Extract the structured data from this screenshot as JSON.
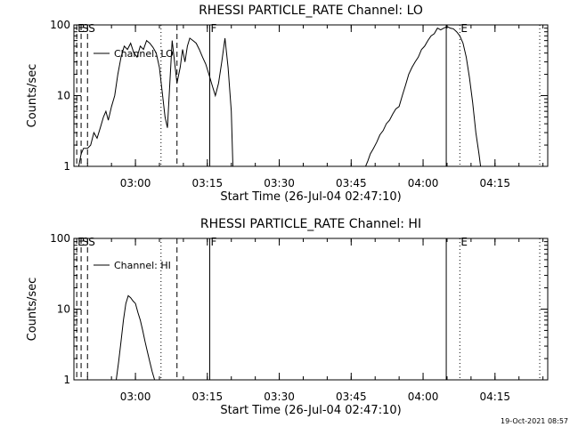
{
  "chart_data": [
    {
      "type": "line",
      "title": "RHESSI PARTICLE_RATE Channel: LO",
      "xlabel": "Start Time (26-Jul-04 02:47:10)",
      "ylabel": "Counts/sec",
      "y_scale": "log",
      "ylim": [
        1,
        100
      ],
      "y_ticks": [
        1,
        10,
        100
      ],
      "y_tick_labels": [
        "1",
        "10",
        "100"
      ],
      "xlim": [
        "02:47:10",
        "04:26:00"
      ],
      "x_ticks": [
        "03:00",
        "03:15",
        "03:30",
        "03:45",
        "04:00",
        "04:15"
      ],
      "x_tick_labels": [
        "03:00",
        "03:15",
        "03:30",
        "03:45",
        "04:00",
        "04:15"
      ],
      "legend": [
        "Channel: LO"
      ],
      "legend_position": "top-left",
      "grid": false,
      "event_markers": [
        {
          "label": "E",
          "time": "02:47:45",
          "style": "dashed"
        },
        {
          "label": "S",
          "time": "02:48:40",
          "style": "dashed"
        },
        {
          "label": "S",
          "time": "02:50:00",
          "style": "dashed"
        },
        {
          "label": "",
          "time": "03:05:20",
          "style": "dotted"
        },
        {
          "label": "",
          "time": "03:08:40",
          "style": "dashed"
        },
        {
          "label": "F",
          "time": "03:15:30",
          "style": "solid"
        },
        {
          "label": "",
          "time": "04:04:50",
          "style": "solid"
        },
        {
          "label": "E",
          "time": "04:07:40",
          "style": "dotted"
        },
        {
          "label": "",
          "time": "04:24:20",
          "style": "dotted"
        }
      ],
      "series": [
        {
          "x": [
            "02:48:10",
            "02:48:40",
            "02:49:10",
            "02:50:00",
            "02:50:40",
            "02:51:20",
            "02:52:00",
            "02:52:40",
            "02:53:20",
            "02:53:50",
            "02:54:20",
            "02:55:00",
            "02:55:40",
            "02:56:20",
            "02:57:00",
            "02:57:40",
            "02:58:20",
            "02:59:00",
            "02:59:40",
            "03:00:20",
            "03:01:00",
            "03:01:40",
            "03:02:20",
            "03:03:00",
            "03:03:40",
            "03:04:20",
            "03:05:00",
            "03:05:40",
            "03:06:10",
            "03:06:40",
            "03:07:10",
            "03:07:40",
            "03:08:10",
            "03:08:40",
            "03:09:20",
            "03:09:50",
            "03:10:20",
            "03:10:50",
            "03:11:20",
            "03:12:00",
            "03:12:40",
            "03:13:20",
            "03:14:00",
            "03:14:40",
            "03:15:20",
            "03:16:00",
            "03:16:40",
            "03:17:20",
            "03:18:00",
            "03:18:40",
            "03:19:20",
            "03:20:00",
            "03:20:20"
          ],
          "y": [
            1.0,
            1.5,
            1.8,
            1.8,
            2.0,
            3.0,
            2.5,
            3.5,
            5.0,
            6.0,
            4.5,
            7.0,
            10.0,
            20.0,
            35.0,
            50.0,
            45.0,
            55.0,
            40.0,
            35.0,
            50.0,
            45.0,
            60.0,
            55.0,
            48.0,
            40.0,
            25.0,
            10.0,
            5.0,
            3.5,
            15.0,
            60.0,
            30.0,
            15.0,
            25.0,
            45.0,
            30.0,
            50.0,
            65.0,
            60.0,
            55.0,
            45.0,
            35.0,
            28.0,
            20.0,
            14.0,
            10.0,
            15.0,
            30.0,
            65.0,
            25.0,
            6.0,
            1.0
          ]
        },
        {
          "x": [
            "03:48:00",
            "03:48:30",
            "03:49:00",
            "03:49:40",
            "03:50:20",
            "03:51:00",
            "03:51:40",
            "03:52:20",
            "03:53:00",
            "03:53:40",
            "03:54:20",
            "03:55:00",
            "03:55:40",
            "03:56:20",
            "03:57:00",
            "03:57:40",
            "03:58:20",
            "03:59:00",
            "03:59:40",
            "04:00:20",
            "04:01:00",
            "04:01:40",
            "04:02:20",
            "04:03:00",
            "04:03:40",
            "04:04:20",
            "04:05:00",
            "04:05:40",
            "04:06:20",
            "04:07:00",
            "04:07:40",
            "04:08:20",
            "04:09:00",
            "04:09:40",
            "04:10:20",
            "04:11:00",
            "04:11:40",
            "04:12:00"
          ],
          "y": [
            1.0,
            1.2,
            1.5,
            1.8,
            2.2,
            2.8,
            3.2,
            4.0,
            4.5,
            5.5,
            6.5,
            7.0,
            10.0,
            14.0,
            20.0,
            25.0,
            30.0,
            35.0,
            45.0,
            50.0,
            60.0,
            70.0,
            75.0,
            90.0,
            85.0,
            90.0,
            95.0,
            90.0,
            88.0,
            80.0,
            70.0,
            55.0,
            35.0,
            18.0,
            8.0,
            3.0,
            1.5,
            1.0
          ]
        }
      ]
    },
    {
      "type": "line",
      "title": "RHESSI PARTICLE_RATE Channel: HI",
      "xlabel": "Start Time (26-Jul-04 02:47:10)",
      "ylabel": "Counts/sec",
      "y_scale": "log",
      "ylim": [
        1,
        100
      ],
      "y_ticks": [
        1,
        10,
        100
      ],
      "y_tick_labels": [
        "1",
        "10",
        "100"
      ],
      "xlim": [
        "02:47:10",
        "04:26:00"
      ],
      "x_ticks": [
        "03:00",
        "03:15",
        "03:30",
        "03:45",
        "04:00",
        "04:15"
      ],
      "x_tick_labels": [
        "03:00",
        "03:15",
        "03:30",
        "03:45",
        "04:00",
        "04:15"
      ],
      "legend": [
        "Channel: HI"
      ],
      "legend_position": "top-left",
      "grid": false,
      "event_markers": [
        {
          "label": "E",
          "time": "02:47:45",
          "style": "dashed"
        },
        {
          "label": "S",
          "time": "02:48:40",
          "style": "dashed"
        },
        {
          "label": "S",
          "time": "02:50:00",
          "style": "dashed"
        },
        {
          "label": "",
          "time": "03:05:20",
          "style": "dotted"
        },
        {
          "label": "",
          "time": "03:08:40",
          "style": "dashed"
        },
        {
          "label": "F",
          "time": "03:15:30",
          "style": "solid"
        },
        {
          "label": "",
          "time": "04:04:50",
          "style": "solid"
        },
        {
          "label": "E",
          "time": "04:07:40",
          "style": "dotted"
        },
        {
          "label": "",
          "time": "04:24:20",
          "style": "dotted"
        }
      ],
      "series": [
        {
          "x": [
            "02:56:00",
            "02:56:30",
            "02:57:00",
            "02:57:30",
            "02:58:00",
            "02:58:30",
            "02:59:00",
            "02:59:30",
            "03:00:00",
            "03:00:30",
            "03:01:00",
            "03:01:30",
            "03:02:00",
            "03:02:30",
            "03:03:00",
            "03:03:30",
            "03:04:00"
          ],
          "y": [
            1.0,
            1.8,
            3.5,
            7.0,
            12.0,
            15.5,
            14.5,
            13.0,
            12.0,
            9.0,
            7.0,
            5.0,
            3.5,
            2.5,
            1.8,
            1.3,
            1.0
          ]
        }
      ]
    }
  ],
  "footer": {
    "timestamp": "19-Oct-2021 08:57"
  }
}
